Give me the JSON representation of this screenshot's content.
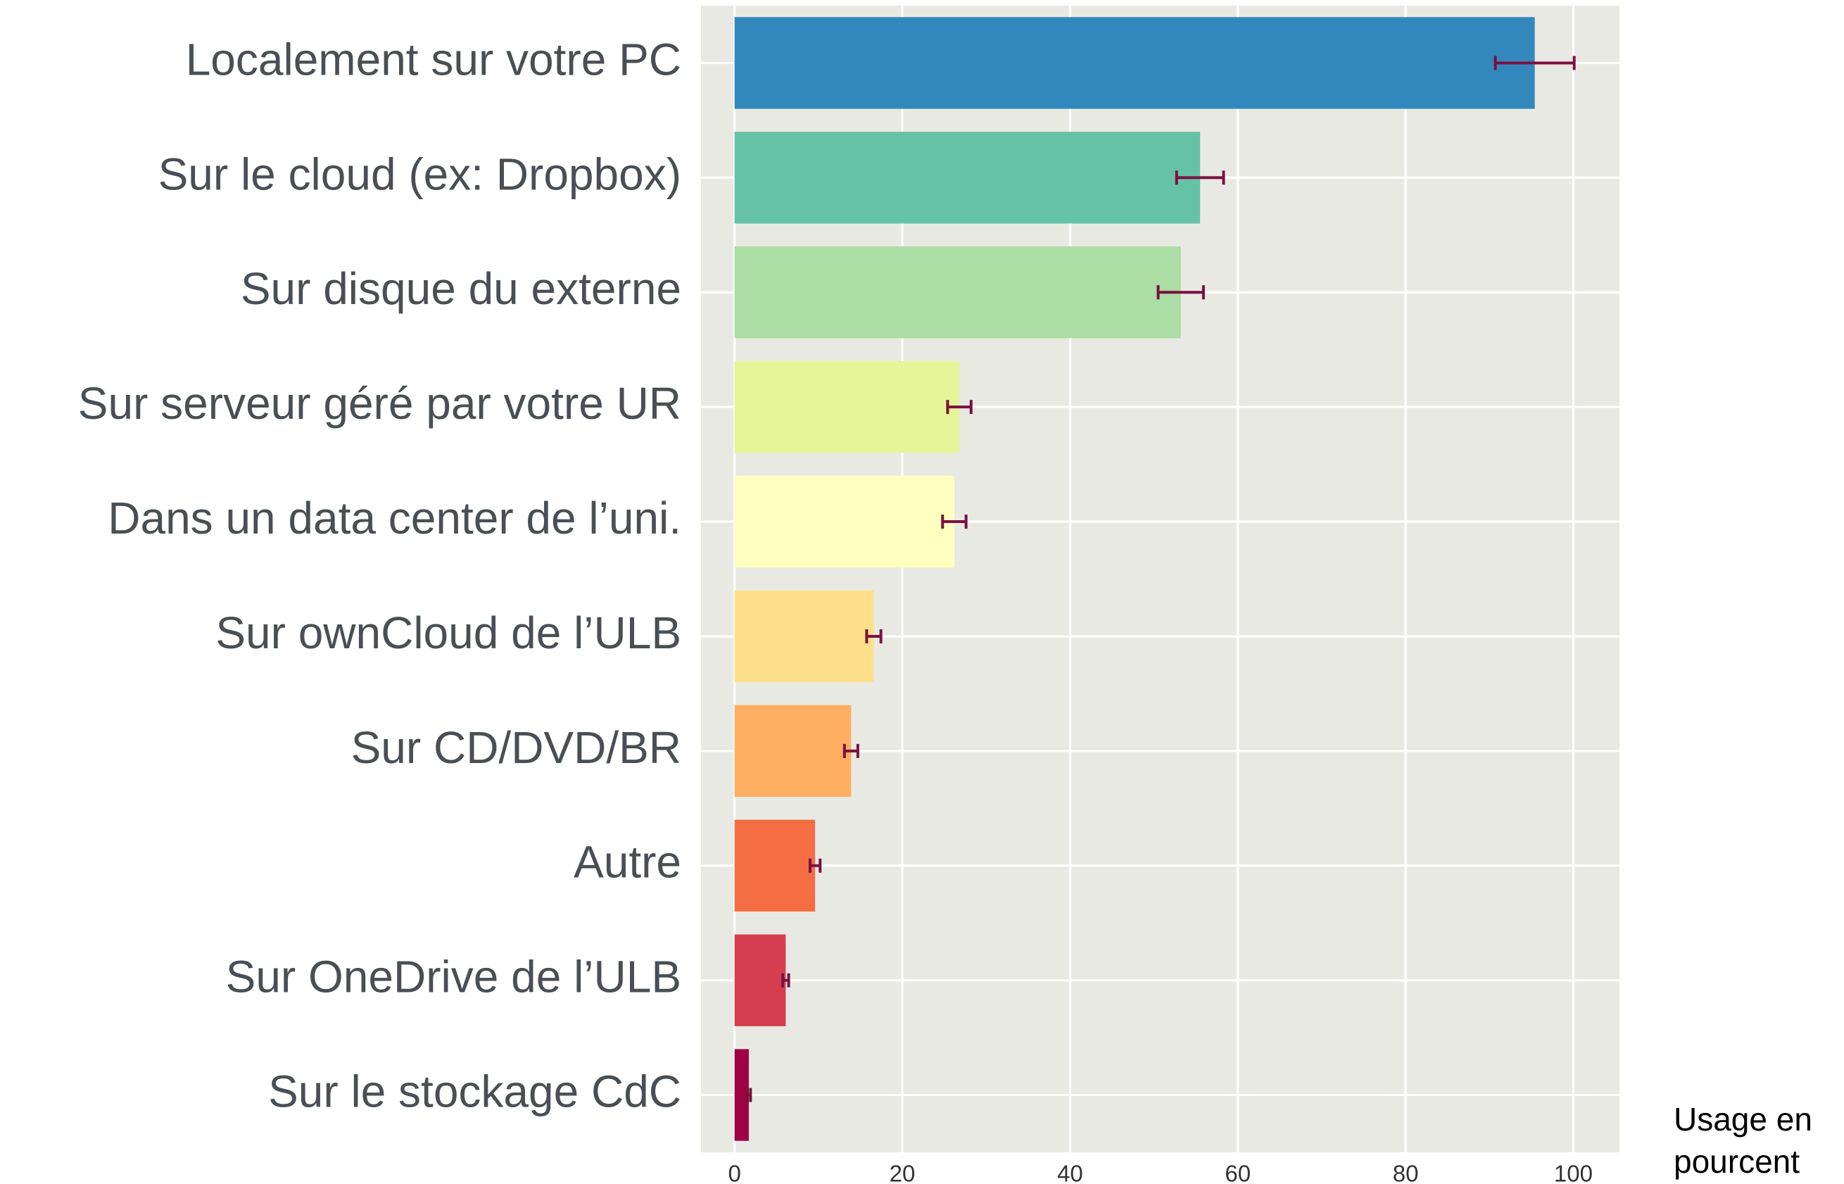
{
  "chart_data": {
    "type": "barh",
    "x_label": "Usage en pourcent",
    "categories": [
      "Localement sur votre PC",
      "Sur le cloud (ex: Dropbox)",
      "Sur disque du externe",
      "Sur serveur géré par votre UR",
      "Dans un data center de l’uni.",
      "Sur ownCloud de l’ULB",
      "Sur CD/DVD/BR",
      "Autre",
      "Sur OneDrive de l’ULB",
      "Sur le stockage CdC"
    ],
    "values": [
      95.4,
      55.5,
      53.2,
      26.8,
      26.2,
      16.6,
      13.9,
      9.6,
      6.1,
      1.7
    ],
    "errors": [
      4.7,
      2.8,
      2.7,
      1.4,
      1.4,
      0.85,
      0.8,
      0.6,
      0.35,
      0.2
    ],
    "colors": [
      "#3288bd",
      "#66c2a5",
      "#abdda4",
      "#e6f598",
      "#ffffbf",
      "#fee08b",
      "#fdae61",
      "#f46d43",
      "#d53e4f",
      "#9e0142"
    ],
    "error_color": "#7b1040",
    "xlim": [
      -4,
      105.5
    ],
    "xticks": [
      0,
      20,
      40,
      60,
      80,
      100
    ],
    "grid": true
  }
}
